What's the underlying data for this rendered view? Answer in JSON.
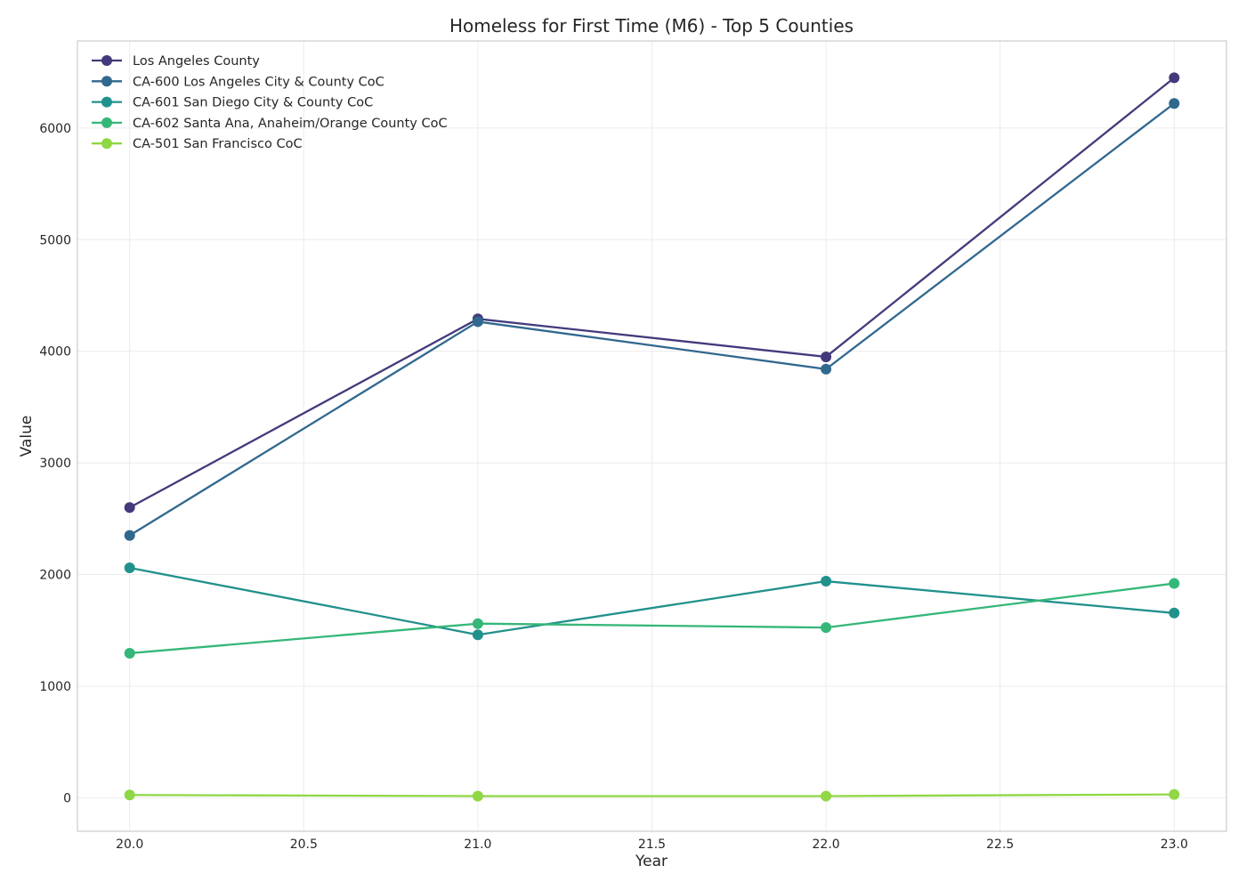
{
  "chart_data": {
    "type": "line",
    "title": "Homeless for First Time (M6) - Top 5 Counties",
    "xlabel": "Year",
    "ylabel": "Value",
    "xlim": [
      19.85,
      23.15
    ],
    "ylim": [
      -300,
      6780
    ],
    "x_ticks": [
      20.0,
      20.5,
      21.0,
      21.5,
      22.0,
      22.5,
      23.0
    ],
    "x_tick_labels": [
      "20.0",
      "20.5",
      "21.0",
      "21.5",
      "22.0",
      "22.5",
      "23.0"
    ],
    "y_ticks": [
      0,
      1000,
      2000,
      3000,
      4000,
      5000,
      6000
    ],
    "y_tick_labels": [
      "0",
      "1000",
      "2000",
      "3000",
      "4000",
      "5000",
      "6000"
    ],
    "grid": true,
    "legend_position": "top-left",
    "x": [
      20.0,
      21.0,
      22.0,
      23.0
    ],
    "series": [
      {
        "name": "Los Angeles County",
        "color": "#433a7c",
        "values": [
          2600,
          4290,
          3950,
          6450
        ]
      },
      {
        "name": "CA-600 Los Angeles City & County CoC",
        "color": "#31688e",
        "values": [
          2350,
          4265,
          3840,
          6220
        ]
      },
      {
        "name": "CA-601 San Diego City & County CoC",
        "color": "#21918c",
        "values": [
          2060,
          1460,
          1940,
          1655
        ]
      },
      {
        "name": "CA-602 Santa Ana, Anaheim/Orange County CoC",
        "color": "#35b779",
        "values": [
          1295,
          1560,
          1525,
          1920
        ]
      },
      {
        "name": "CA-501 San Francisco CoC",
        "color": "#8fd744",
        "values": [
          25,
          15,
          15,
          30
        ]
      }
    ]
  }
}
